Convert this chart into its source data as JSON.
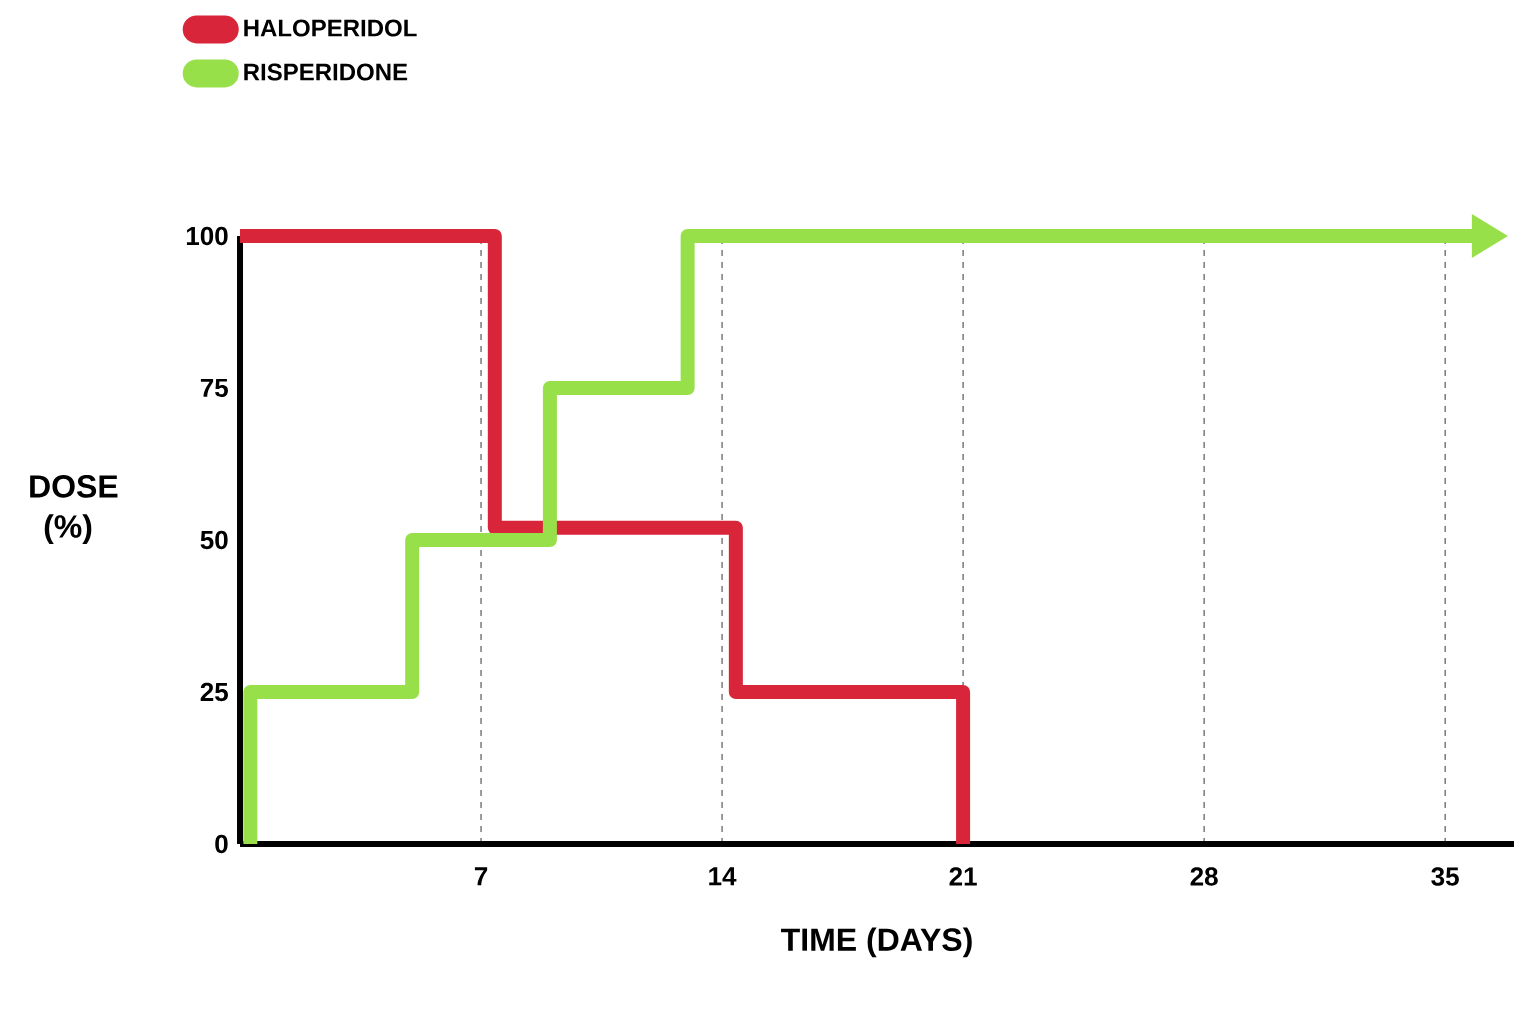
{
  "chart_data": {
    "type": "step",
    "xlabel": "TIME (DAYS)",
    "ylabel": "DOSE (%)",
    "xlim": [
      0,
      37
    ],
    "ylim": [
      0,
      100
    ],
    "xticks": [
      7,
      14,
      21,
      28,
      35
    ],
    "yticks": [
      0,
      25,
      50,
      75,
      100
    ],
    "grid": "x",
    "legend": "top left",
    "series": [
      {
        "name": "HALOPERIDOL",
        "color": "#d9253a",
        "x": [
          0,
          7.4,
          14.4,
          21
        ],
        "values": [
          100,
          52,
          25,
          0
        ]
      },
      {
        "name": "RISPERIDONE",
        "color": "#98e04a",
        "x": [
          0.3,
          0.3,
          5,
          9,
          13,
          36.3
        ],
        "values": [
          0,
          25,
          50,
          75,
          100,
          100
        ]
      }
    ]
  }
}
